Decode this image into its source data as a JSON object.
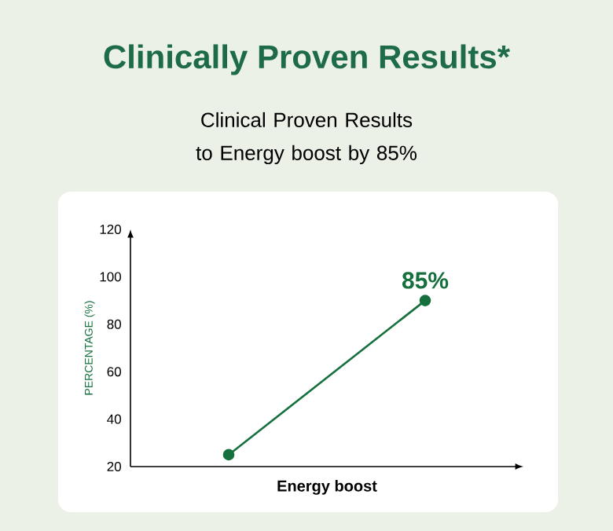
{
  "chart_data": {
    "type": "line",
    "title": "Clinically Proven Results*",
    "subtitle": "Clinical Proven Results to Energy boost by 85%",
    "xlabel": "Energy boost",
    "ylabel": "PERCENTAGE (%)",
    "categories": [
      null,
      null
    ],
    "values": [
      25,
      90
    ],
    "color": "#16703e",
    "marker": "circle",
    "ylim": [
      20,
      120
    ],
    "yticks": [
      20,
      40,
      60,
      80,
      100,
      120
    ],
    "tick_labels": "y",
    "annotations": [
      "85%"
    ]
  }
}
